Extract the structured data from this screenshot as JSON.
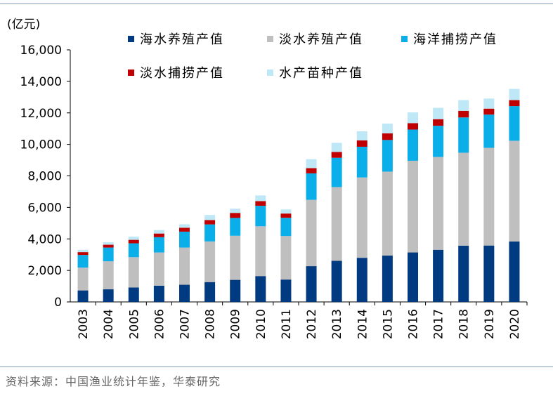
{
  "unit_label": "(亿元)",
  "source": "资料来源：中国渔业统计年鉴，华泰研究",
  "colors": {
    "mariculture": "#003a80",
    "freshwater_aquaculture": "#bfbfbf",
    "marine_fishing": "#0aaee8",
    "freshwater_fishing": "#c00000",
    "seedling": "#bfe8f7"
  },
  "legend": [
    {
      "name": "海水养殖产值",
      "color": "#003a80"
    },
    {
      "name": "淡水养殖产值",
      "color": "#bfbfbf"
    },
    {
      "name": "海洋捕捞产值",
      "color": "#0aaee8"
    },
    {
      "name": "淡水捕捞产值",
      "color": "#c00000"
    },
    {
      "name": "水产苗种产值",
      "color": "#bfe8f7"
    }
  ],
  "chart_data": {
    "type": "bar",
    "stacked": true,
    "ylabel": "(亿元)",
    "ylim": [
      0,
      16000
    ],
    "yticks": [
      "0",
      "2,000",
      "4,000",
      "6,000",
      "8,000",
      "10,000",
      "12,000",
      "14,000",
      "16,000"
    ],
    "ytick_values": [
      0,
      2000,
      4000,
      6000,
      8000,
      10000,
      12000,
      14000,
      16000
    ],
    "categories": [
      "2003",
      "2004",
      "2005",
      "2006",
      "2007",
      "2008",
      "2009",
      "2010",
      "2011",
      "2012",
      "2013",
      "2014",
      "2015",
      "2016",
      "2017",
      "2018",
      "2019",
      "2020"
    ],
    "series": [
      {
        "name": "海水养殖产值",
        "color": "#003a80",
        "values": [
          730,
          800,
          920,
          1030,
          1090,
          1260,
          1400,
          1640,
          1420,
          2270,
          2610,
          2800,
          2940,
          3140,
          3310,
          3570,
          3580,
          3840
        ]
      },
      {
        "name": "淡水养殖产值",
        "color": "#bfbfbf",
        "values": [
          1450,
          1780,
          1920,
          2110,
          2360,
          2580,
          2800,
          3160,
          2760,
          4210,
          4680,
          5100,
          5330,
          5820,
          5890,
          5900,
          6200,
          6390
        ]
      },
      {
        "name": "海洋捕捞产值",
        "color": "#0aaee8",
        "values": [
          800,
          870,
          880,
          970,
          1010,
          1080,
          1130,
          1300,
          1160,
          1680,
          1860,
          1950,
          2010,
          1980,
          1980,
          2240,
          2110,
          2200
        ]
      },
      {
        "name": "淡水捕捞产值",
        "color": "#c00000",
        "values": [
          180,
          180,
          220,
          230,
          250,
          280,
          320,
          300,
          270,
          330,
          370,
          400,
          420,
          410,
          420,
          420,
          380,
          380
        ]
      },
      {
        "name": "水产苗种产值",
        "color": "#bfe8f7",
        "values": [
          150,
          160,
          200,
          220,
          220,
          320,
          270,
          360,
          260,
          570,
          580,
          580,
          620,
          680,
          720,
          680,
          640,
          710
        ]
      }
    ]
  }
}
